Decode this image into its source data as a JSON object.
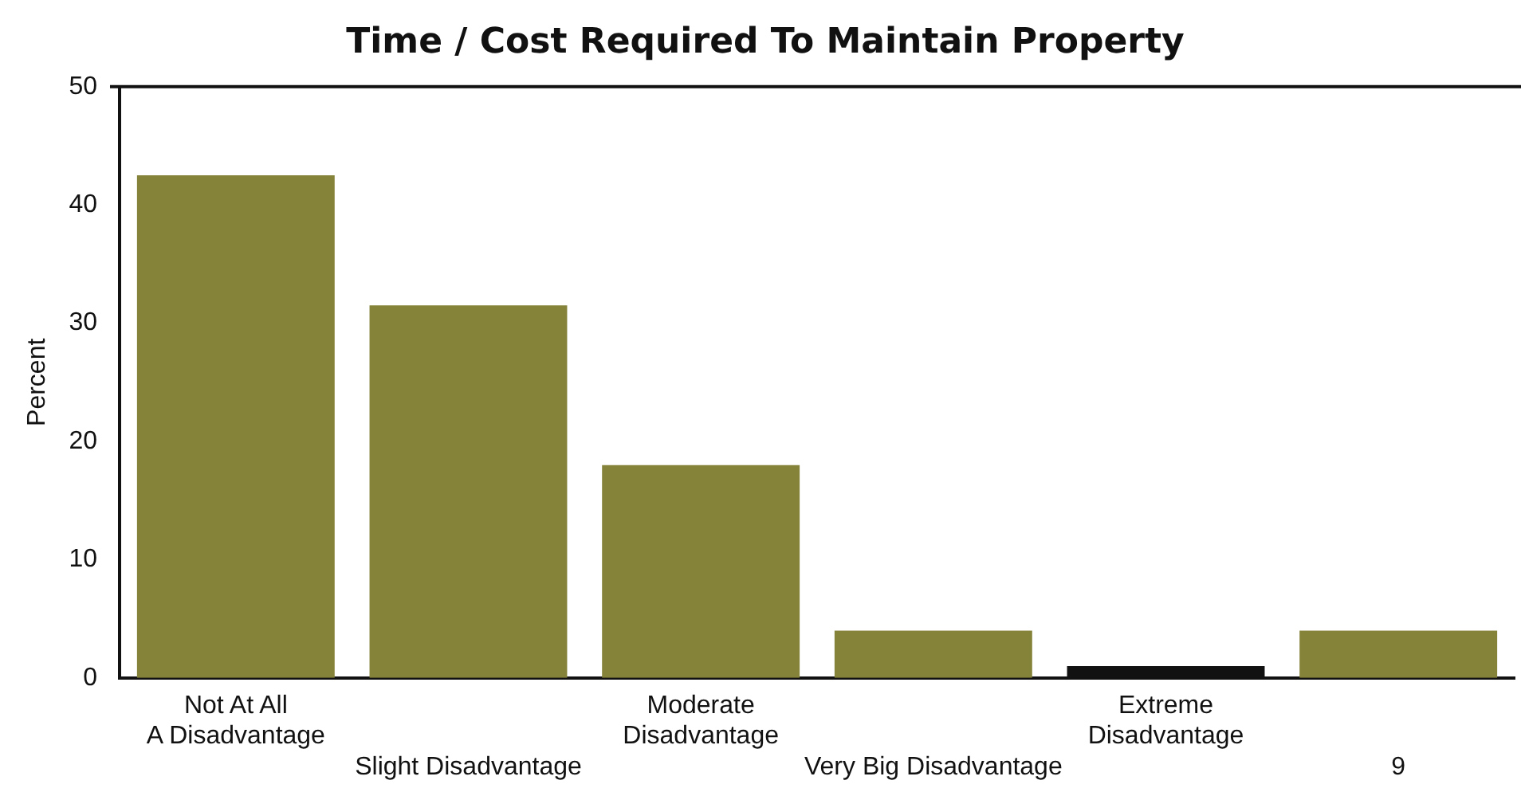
{
  "chart_data": {
    "type": "bar",
    "title": "Time / Cost Required To Maintain Property",
    "ylabel": "Percent",
    "categories": [
      "Not At All\nA Disadvantage",
      "Slight Disadvantage",
      "Moderate\nDisadvantage",
      "Very Big Disadvantage",
      "Extreme\nDisadvantage",
      "9"
    ],
    "values": [
      42.5,
      31.5,
      18,
      4,
      1,
      4
    ],
    "colors": [
      "#85833a",
      "#85833a",
      "#85833a",
      "#85833a",
      "#111111",
      "#85833a"
    ],
    "ylim": [
      0,
      50
    ],
    "yticks": [
      0,
      10,
      20,
      30,
      40,
      50
    ],
    "grid": false,
    "legend": false
  }
}
